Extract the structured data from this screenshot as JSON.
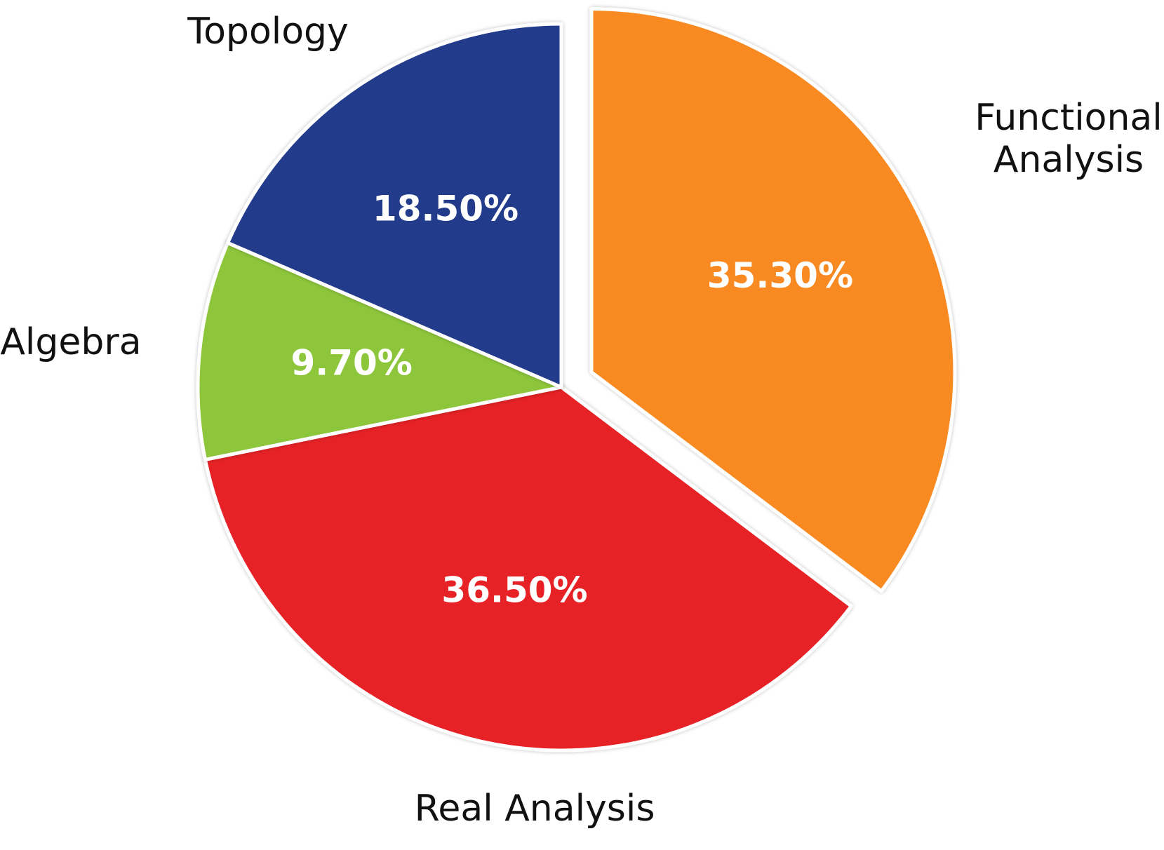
{
  "chart_data": {
    "type": "pie",
    "title": "",
    "legend": "none",
    "slices": [
      {
        "label": "Functional Analysis",
        "label_lines": [
          "Functional",
          "Analysis"
        ],
        "value": 35.3,
        "display": "35.30%",
        "color": "#F98A23",
        "exploded": true
      },
      {
        "label": "Real Analysis",
        "label_lines": [
          "Real Analysis"
        ],
        "value": 36.5,
        "display": "36.50%",
        "color": "#E62228",
        "exploded": false
      },
      {
        "label": "Algebra",
        "label_lines": [
          "Algebra"
        ],
        "value": 9.7,
        "display": "9.70%",
        "color": "#8DC63A",
        "exploded": false
      },
      {
        "label": "Topology",
        "label_lines": [
          "Topology"
        ],
        "value": 18.5,
        "display": "18.50%",
        "color": "#233A8B",
        "exploded": false
      }
    ]
  }
}
